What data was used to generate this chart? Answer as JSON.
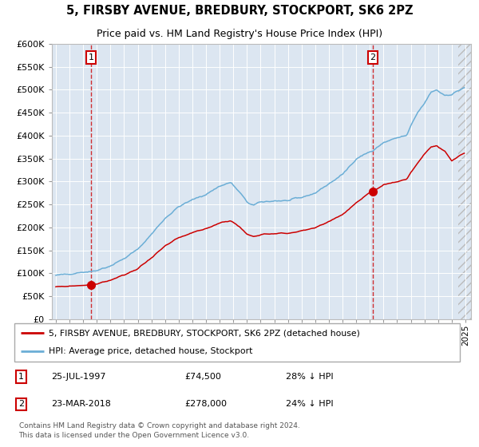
{
  "title": "5, FIRSBY AVENUE, BREDBURY, STOCKPORT, SK6 2PZ",
  "subtitle": "Price paid vs. HM Land Registry's House Price Index (HPI)",
  "sale1_date_label": "25-JUL-1997",
  "sale1_price": 74500,
  "sale1_label": "1",
  "sale1_pct": "28% ↓ HPI",
  "sale2_date_label": "23-MAR-2018",
  "sale2_price": 278000,
  "sale2_label": "2",
  "sale2_pct": "24% ↓ HPI",
  "legend_property": "5, FIRSBY AVENUE, BREDBURY, STOCKPORT, SK6 2PZ (detached house)",
  "legend_hpi": "HPI: Average price, detached house, Stockport",
  "copyright": "Contains HM Land Registry data © Crown copyright and database right 2024.\nThis data is licensed under the Open Government Licence v3.0.",
  "hpi_color": "#6baed6",
  "property_color": "#cc0000",
  "plot_bg_color": "#dce6f1",
  "fig_bg_color": "#ffffff",
  "ylim_min": 0,
  "ylim_max": 600000,
  "xlim_min": 1994.7,
  "xlim_max": 2025.4,
  "sale1_x": 1997.58,
  "sale2_x": 2018.22
}
